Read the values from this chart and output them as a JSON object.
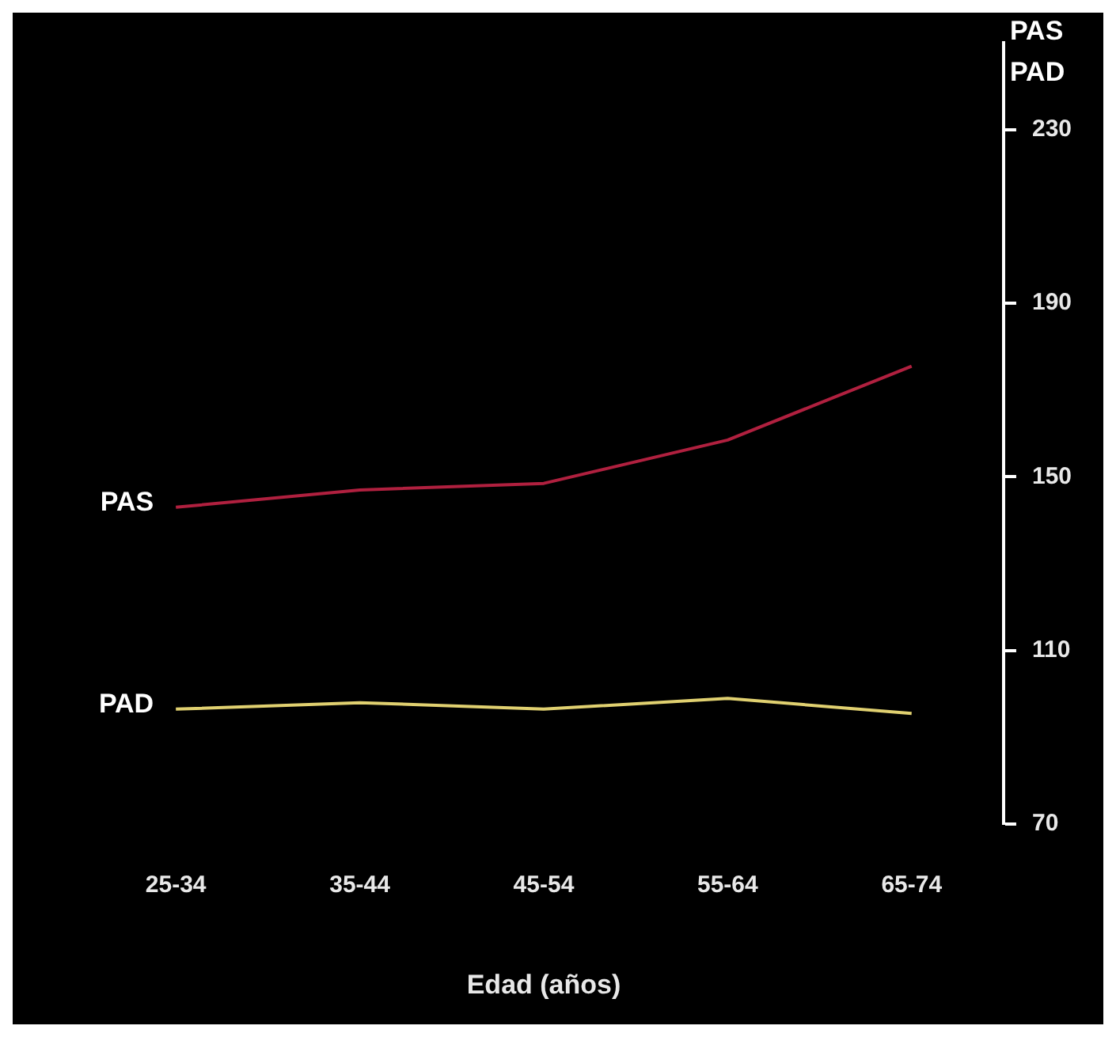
{
  "chart_data": {
    "type": "line",
    "xlabel": "Edad (años)",
    "ylabel": "PAS\nPAD",
    "categories": [
      "25-34",
      "35-44",
      "45-54",
      "55-64",
      "65-74"
    ],
    "series": [
      {
        "name": "PAS",
        "color": "#b0203f",
        "values": [
          143,
          147,
          148.5,
          158.5,
          175.5
        ]
      },
      {
        "name": "PAD",
        "color": "#e0d070",
        "values": [
          96.5,
          98,
          96.5,
          99,
          95.5
        ]
      }
    ],
    "ylim": [
      70,
      250
    ],
    "yticks": [
      70,
      110,
      150,
      190,
      230
    ],
    "grid": false,
    "legend": false
  }
}
